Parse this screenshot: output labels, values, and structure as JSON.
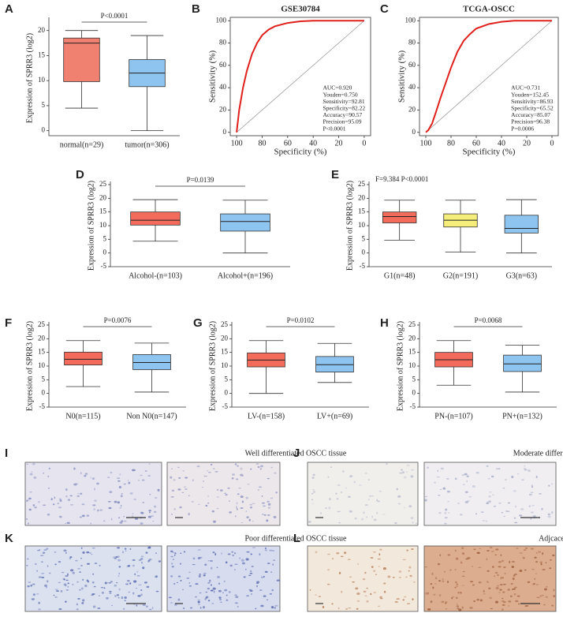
{
  "chart_data": [
    {
      "type": "box",
      "label": "A",
      "ylabel": "Expression of SPRR3 (log2)",
      "annotation": "P<0.0001",
      "categories": [
        "normal(n=29)",
        "tumor(n=306)"
      ],
      "boxes": [
        {
          "color": "#f08070",
          "min": 4.5,
          "q1": 9.8,
          "median": 17.5,
          "q3": 18.5,
          "max": 20
        },
        {
          "color": "#8ec5f0",
          "min": 0,
          "q1": 8.8,
          "median": 11.5,
          "q3": 14.2,
          "max": 19
        }
      ],
      "ylim": [
        -1,
        22
      ],
      "yticks": [
        0,
        5,
        10,
        15,
        20
      ]
    },
    {
      "type": "line",
      "label": "B",
      "title": "GSE30784",
      "xlabel": "Specificity (%)",
      "ylabel": "Sensitivity (%)",
      "x": [
        100,
        98,
        95,
        92,
        88,
        84,
        80,
        75,
        70,
        60,
        50,
        40,
        0
      ],
      "series": [
        {
          "color": "#e0201c",
          "values": [
            0,
            20,
            40,
            55,
            70,
            80,
            87,
            92,
            95,
            98,
            99.5,
            100,
            100
          ]
        }
      ],
      "xlim": [
        105,
        -5
      ],
      "ylim": [
        -3,
        103
      ],
      "xticks": [
        100,
        80,
        60,
        40,
        20,
        0
      ],
      "yticks": [
        0,
        20,
        40,
        60,
        80,
        100
      ],
      "annotations": [
        "AUC=0.920",
        "Youden=0.750",
        "Sensitivity=92.81",
        "Specificity=82.22",
        "Accuracy=90.57",
        "Precision=95.09",
        "P<0.0001"
      ]
    },
    {
      "type": "line",
      "label": "C",
      "title": "TCGA-OSCC",
      "xlabel": "Specificity (%)",
      "ylabel": "Sensitivity (%)",
      "x": [
        100,
        98,
        95,
        92,
        88,
        84,
        80,
        75,
        70,
        65,
        60,
        50,
        40,
        30,
        0
      ],
      "series": [
        {
          "color": "#e0201c",
          "values": [
            0,
            2,
            8,
            18,
            32,
            45,
            58,
            72,
            82,
            88,
            93,
            97,
            99,
            100,
            100
          ]
        }
      ],
      "xlim": [
        105,
        -5
      ],
      "ylim": [
        -3,
        103
      ],
      "xticks": [
        100,
        80,
        60,
        40,
        20,
        0
      ],
      "yticks": [
        0,
        20,
        40,
        60,
        80,
        100
      ],
      "annotations": [
        "AUC=0.731",
        "Youden=152.45",
        "Sensitivity=86.93",
        "Specificity=65.52",
        "Accuracy=85.07",
        "Precision=96.38",
        "P=0.0006"
      ]
    },
    {
      "type": "box",
      "label": "D",
      "ylabel": "Expression of SPRR3 (log2)",
      "annotation": "P=0.0139",
      "categories": [
        "Alcohol-(n=103)",
        "Alcohol+(n=196)"
      ],
      "boxes": [
        {
          "color": "#f26b5b",
          "min": 4.3,
          "q1": 10.2,
          "median": 12,
          "q3": 15,
          "max": 19.5
        },
        {
          "color": "#8ec5f0",
          "min": 0,
          "q1": 8,
          "median": 11.5,
          "q3": 14.3,
          "max": 19.3
        }
      ],
      "ylim": [
        -5,
        25
      ],
      "yticks": [
        -5,
        0,
        5,
        10,
        15,
        20,
        25
      ]
    },
    {
      "type": "box",
      "label": "E",
      "ylabel": "Expression of SPRR3 (log2)",
      "annotation": "F=9.384  P<0.0001",
      "categories": [
        "G1(n=48)",
        "G2(n=191)",
        "G3(n=63)"
      ],
      "boxes": [
        {
          "color": "#f26b5b",
          "min": 4.7,
          "q1": 11,
          "median": 13.3,
          "q3": 15,
          "max": 19.3
        },
        {
          "color": "#f5ee7a",
          "min": 0.3,
          "q1": 9.5,
          "median": 12,
          "q3": 14.3,
          "max": 19.3
        },
        {
          "color": "#8ec5f0",
          "min": 0,
          "q1": 7.3,
          "median": 9,
          "q3": 13.8,
          "max": 19.5
        }
      ],
      "ylim": [
        -5,
        25
      ],
      "yticks": [
        -5,
        0,
        5,
        10,
        15,
        20,
        25
      ]
    },
    {
      "type": "box",
      "label": "F",
      "ylabel": "Expression of SPRR3 (log2)",
      "annotation": "P=0.0076",
      "categories": [
        "N0(n=115)",
        "Non N0(n=147)"
      ],
      "boxes": [
        {
          "color": "#f26b5b",
          "min": 2.5,
          "q1": 10.4,
          "median": 12.5,
          "q3": 15.1,
          "max": 19.3
        },
        {
          "color": "#8ec5f0",
          "min": 0.5,
          "q1": 8.7,
          "median": 11.3,
          "q3": 14.2,
          "max": 18.4
        }
      ],
      "ylim": [
        -5,
        25
      ],
      "yticks": [
        -5,
        0,
        5,
        10,
        15,
        20,
        25
      ]
    },
    {
      "type": "box",
      "label": "G",
      "ylabel": "Expression of SPRR3 (log2)",
      "annotation": "P=0.0102",
      "categories": [
        "LV-(n=158)",
        "LV+(n=69)"
      ],
      "boxes": [
        {
          "color": "#f26b5b",
          "min": 0,
          "q1": 9.7,
          "median": 12.2,
          "q3": 14.8,
          "max": 19.3
        },
        {
          "color": "#8ec5f0",
          "min": 4,
          "q1": 7.8,
          "median": 10.5,
          "q3": 13.5,
          "max": 18.3
        }
      ],
      "ylim": [
        -5,
        25
      ],
      "yticks": [
        -5,
        0,
        5,
        10,
        15,
        20,
        25
      ]
    },
    {
      "type": "box",
      "label": "H",
      "ylabel": "Expression of SPRR3 (log2)",
      "annotation": "P=0.0068",
      "categories": [
        "PN-(n=107)",
        "PN+(n=132)"
      ],
      "boxes": [
        {
          "color": "#f26b5b",
          "min": 3,
          "q1": 9.7,
          "median": 12.3,
          "q3": 15,
          "max": 19.3
        },
        {
          "color": "#8ec5f0",
          "min": 0.5,
          "q1": 8,
          "median": 10.8,
          "q3": 14,
          "max": 17.6
        }
      ],
      "ylim": [
        -5,
        25
      ],
      "yticks": [
        -5,
        0,
        5,
        10,
        15,
        20,
        25
      ]
    }
  ],
  "images": [
    {
      "label": "I",
      "caption": "Well differentiated OSCC tissue"
    },
    {
      "label": "J",
      "caption": "Moderate differentiated OSCC tissue"
    },
    {
      "label": "K",
      "caption": "Poor differentiated OSCC tissue"
    },
    {
      "label": "L",
      "caption": "Adjcacent oral tissue"
    }
  ]
}
